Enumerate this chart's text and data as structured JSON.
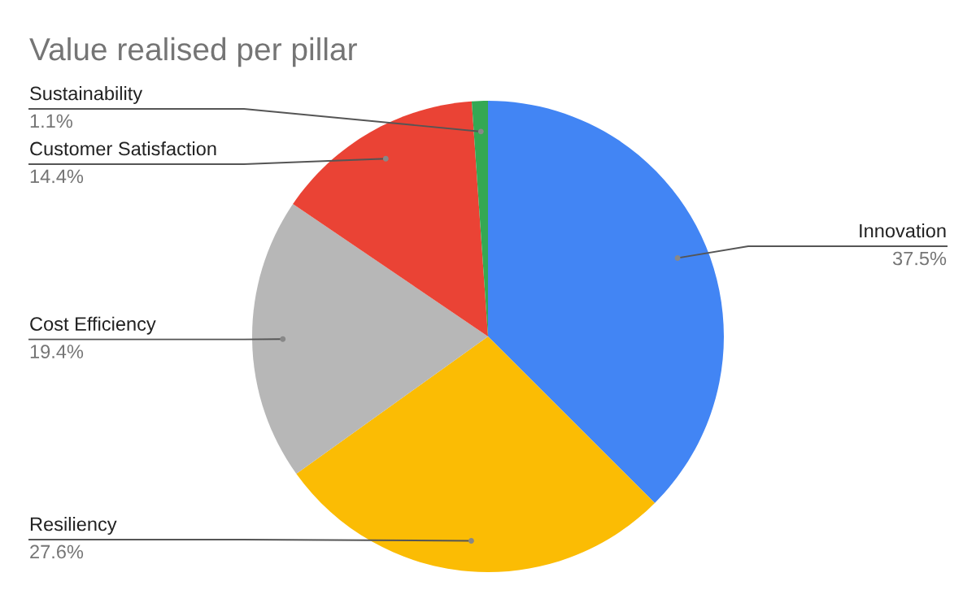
{
  "chart_data": {
    "type": "pie",
    "title": "Value realised per pillar",
    "categories": [
      "Innovation",
      "Resiliency",
      "Cost Efficiency",
      "Customer Satisfaction",
      "Sustainability"
    ],
    "values": [
      37.5,
      27.6,
      19.4,
      14.4,
      1.1
    ],
    "value_labels": [
      "37.5%",
      "27.6%",
      "19.4%",
      "14.4%",
      "1.1%"
    ],
    "colors": [
      "#4285f4",
      "#fbbc04",
      "#b7b7b7",
      "#ea4335",
      "#34a853"
    ],
    "legend": false
  }
}
